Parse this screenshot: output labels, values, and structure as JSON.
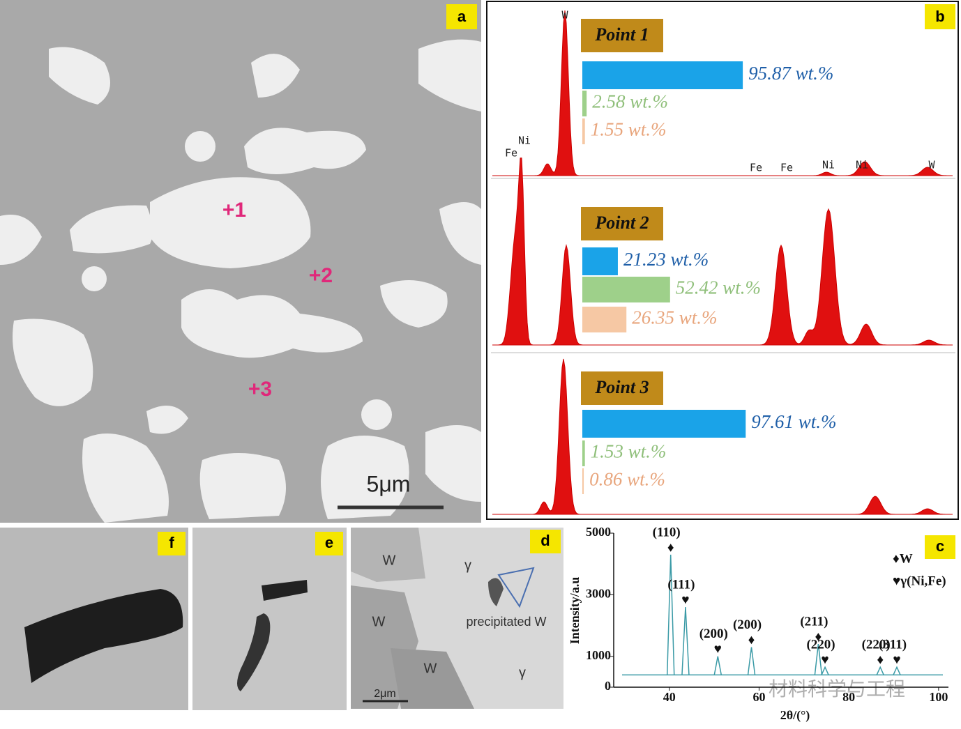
{
  "panels": {
    "a": {
      "label": "a",
      "markers": [
        "+1",
        "+2",
        "+3"
      ],
      "scale_bar": "5μm"
    },
    "b": {
      "label": "b",
      "peaks": [
        "W",
        "Ni",
        "Fe",
        "Fe",
        "Fe",
        "Ni",
        "Ni",
        "W"
      ],
      "points": [
        {
          "name": "Point 1",
          "values": [
            95.87,
            2.58,
            1.55
          ],
          "value_labels": [
            "95.87 wt.%",
            "2.58 wt.%",
            "1.55 wt.%"
          ]
        },
        {
          "name": "Point 2",
          "values": [
            21.23,
            52.42,
            26.35
          ],
          "value_labels": [
            "21.23 wt.%",
            "52.42 wt.%",
            "26.35 wt.%"
          ]
        },
        {
          "name": "Point 3",
          "values": [
            97.61,
            1.53,
            0.86
          ],
          "value_labels": [
            "97.61 wt.%",
            "1.53 wt.%",
            "0.86 wt.%"
          ]
        }
      ],
      "colors": [
        "#1aa3e8",
        "#9ed08a",
        "#f6c8a4"
      ],
      "label_colors": [
        "#1f5fa8",
        "#8fbf7a",
        "#e8a57c"
      ]
    },
    "c": {
      "label": "c",
      "type": "line",
      "ylabel": "Intensity/a.u",
      "xlabel": "2θ/(°)",
      "xlim": [
        27.6,
        102.2
      ],
      "xticks": [
        40,
        60,
        80,
        100
      ],
      "ylim": [
        0,
        5000
      ],
      "yticks": [
        0,
        1000,
        3000,
        5000
      ],
      "color": "#3a9aa6",
      "baseline": 400,
      "legend": [
        "♦W",
        "♥γ(Ni,Fe)"
      ],
      "peaks": [
        {
          "x": 40.3,
          "y": 4300,
          "marker": "♦",
          "label": "(110)"
        },
        {
          "x": 43.6,
          "y": 2600,
          "marker": "♥",
          "label": "(111)"
        },
        {
          "x": 50.8,
          "y": 1000,
          "marker": "♥",
          "label": "(200)"
        },
        {
          "x": 58.3,
          "y": 1300,
          "marker": "♦",
          "label": "(200)"
        },
        {
          "x": 73.2,
          "y": 1400,
          "marker": "♦",
          "label": "(211)"
        },
        {
          "x": 74.7,
          "y": 650,
          "marker": "♥",
          "label": "(220)"
        },
        {
          "x": 87.0,
          "y": 650,
          "marker": "♦",
          "label": "(220)"
        },
        {
          "x": 90.7,
          "y": 650,
          "marker": "♥",
          "label": "(311)"
        }
      ]
    },
    "d": {
      "label": "d",
      "texts": [
        "W",
        "W",
        "W",
        "γ",
        "γ",
        "precipitated W",
        "2μm"
      ]
    },
    "e": {
      "label": "e"
    },
    "f": {
      "label": "f"
    }
  },
  "watermark": "材料科学与工程"
}
